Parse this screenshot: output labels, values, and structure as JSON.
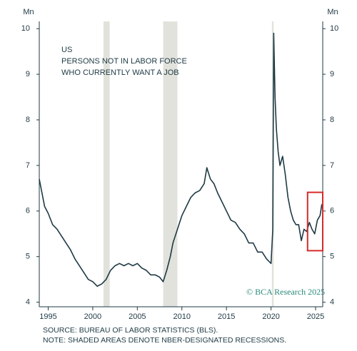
{
  "chart_data": {
    "type": "line",
    "title_lines": [
      "US",
      "PERSONS NOT IN LABOR FORCE",
      "WHO CURRENTLY WANT A JOB"
    ],
    "y_unit_left": "Mn",
    "y_unit_right": "Mn",
    "source_lines": [
      "SOURCE: BUREAU OF LABOR STATISTICS (BLS).",
      "NOTE: SHADED AREAS DENOTE NBER-DESIGNATED RECESSIONS."
    ],
    "watermark": "© BCA Research 2025",
    "x": [
      1994.0,
      1994.3,
      1994.6,
      1995.0,
      1995.5,
      1996.0,
      1996.5,
      1997.0,
      1997.5,
      1998.0,
      1998.5,
      1999.0,
      1999.5,
      2000.0,
      2000.5,
      2001.0,
      2001.5,
      2002.0,
      2002.5,
      2003.0,
      2003.5,
      2004.0,
      2004.5,
      2005.0,
      2005.5,
      2006.0,
      2006.5,
      2007.0,
      2007.5,
      2007.9,
      2008.3,
      2008.7,
      2009.0,
      2009.5,
      2010.0,
      2010.5,
      2011.0,
      2011.5,
      2012.0,
      2012.5,
      2012.8,
      2013.2,
      2013.6,
      2014.0,
      2014.5,
      2015.0,
      2015.5,
      2016.0,
      2016.5,
      2017.0,
      2017.5,
      2018.0,
      2018.5,
      2019.0,
      2019.5,
      2020.0,
      2020.2,
      2020.3,
      2020.45,
      2020.6,
      2020.8,
      2021.0,
      2021.3,
      2021.6,
      2021.9,
      2022.2,
      2022.5,
      2022.8,
      2023.1,
      2023.4,
      2023.7,
      2024.0,
      2024.3,
      2024.6,
      2024.9,
      2025.2,
      2025.5,
      2025.7
    ],
    "series": [
      {
        "name": "Persons not in labor force who currently want a job",
        "color": "#1e3a44",
        "values": [
          6.7,
          6.4,
          6.1,
          5.95,
          5.7,
          5.6,
          5.45,
          5.3,
          5.15,
          4.95,
          4.8,
          4.65,
          4.5,
          4.45,
          4.35,
          4.4,
          4.5,
          4.7,
          4.8,
          4.85,
          4.8,
          4.85,
          4.8,
          4.85,
          4.75,
          4.7,
          4.6,
          4.6,
          4.55,
          4.45,
          4.7,
          5.0,
          5.3,
          5.6,
          5.9,
          6.1,
          6.3,
          6.4,
          6.45,
          6.6,
          6.95,
          6.7,
          6.6,
          6.4,
          6.2,
          6.0,
          5.8,
          5.75,
          5.6,
          5.5,
          5.3,
          5.3,
          5.1,
          5.1,
          4.95,
          4.85,
          5.6,
          9.9,
          8.5,
          7.8,
          7.3,
          7.0,
          7.2,
          6.8,
          6.3,
          6.0,
          5.8,
          5.7,
          5.7,
          5.35,
          5.6,
          5.55,
          5.75,
          5.6,
          5.5,
          5.8,
          5.9,
          6.15
        ]
      }
    ],
    "recessions": [
      [
        2001.2,
        2001.9
      ],
      [
        2007.9,
        2009.5
      ],
      [
        2020.1,
        2020.3
      ]
    ],
    "recession_color": "#e2e2dc",
    "highlight": {
      "x": [
        2024.1,
        2025.8
      ],
      "y": [
        5.13,
        6.41
      ],
      "color": "#d62a2a"
    },
    "xlim": [
      1994.0,
      2025.8
    ],
    "xticks": [
      1995,
      2000,
      2005,
      2010,
      2015,
      2020,
      2025
    ],
    "ylim": [
      3.9,
      10.05
    ],
    "yticks": [
      4,
      5,
      6,
      7,
      8,
      9,
      10
    ],
    "grid": false
  }
}
